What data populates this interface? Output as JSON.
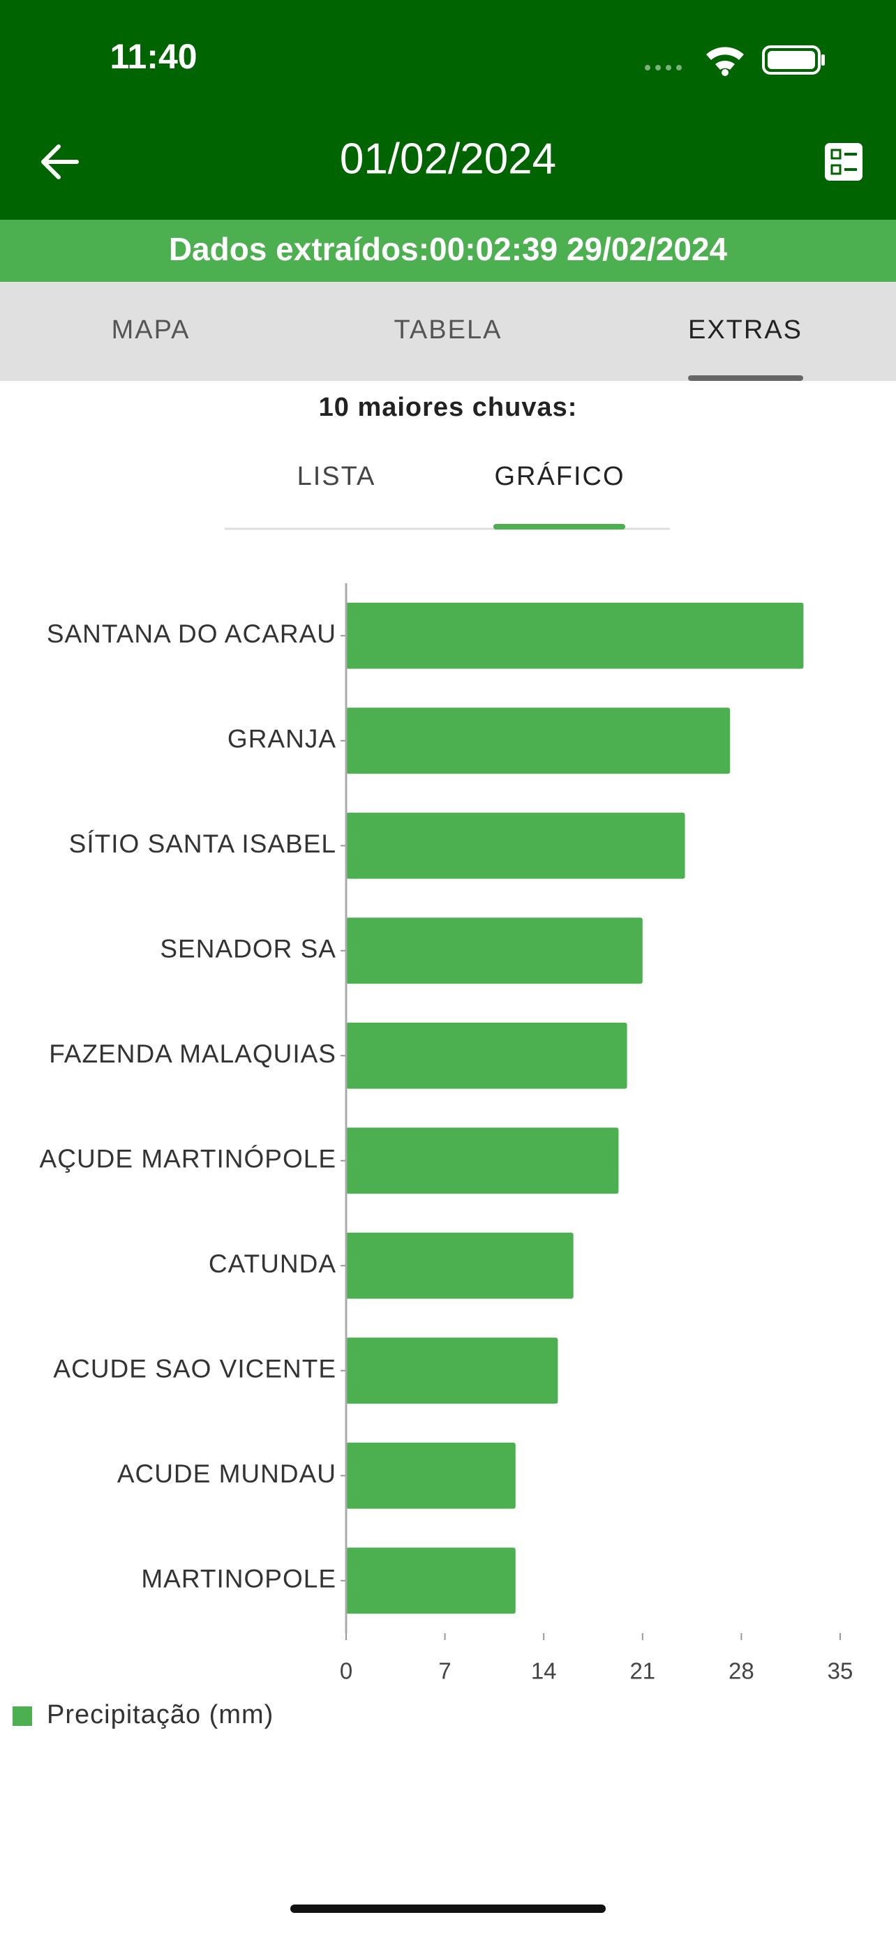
{
  "status_bar": {
    "time": "11:40"
  },
  "header": {
    "title": "01/02/2024",
    "subtitle": "Dados extraídos:00:02:39 29/02/2024"
  },
  "tabs": [
    "MAPA",
    "TABELA",
    "EXTRAS"
  ],
  "section_title": "10 maiores chuvas:",
  "sub_tabs": [
    "LISTA",
    "GRÁFICO"
  ],
  "chart_data": {
    "type": "bar",
    "orientation": "horizontal",
    "categories": [
      "SANTANA DO ACARAU",
      "GRANJA",
      "SÍTIO SANTA ISABEL",
      "SENADOR SA",
      "FAZENDA MALAQUIAS",
      "AÇUDE MARTINÓPOLE",
      "CATUNDA",
      "ACUDE SAO VICENTE",
      "ACUDE MUNDAU",
      "MARTINOPOLE"
    ],
    "series": [
      {
        "name": "Precipitação (mm)",
        "color": "#4caf50",
        "values": [
          32.4,
          27.2,
          24.0,
          21.0,
          19.9,
          19.3,
          16.1,
          15.0,
          12.0,
          12.0
        ]
      }
    ],
    "xlim": [
      0,
      35
    ],
    "xticks": [
      0,
      7,
      14,
      21,
      28,
      35
    ],
    "grid": false,
    "legend": "bottom-left"
  }
}
